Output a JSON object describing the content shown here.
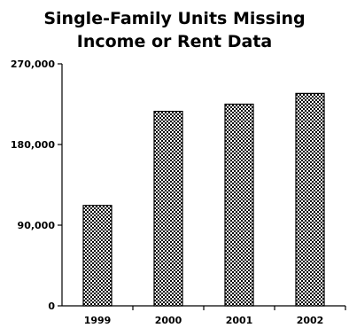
{
  "chart_data": {
    "type": "bar",
    "title_lines": [
      "Single-Family Units Missing",
      "Income or Rent Data"
    ],
    "categories": [
      "1999",
      "2000",
      "2001",
      "2002"
    ],
    "values": [
      112000,
      217000,
      225000,
      237000
    ],
    "ylim": [
      0,
      270000
    ],
    "yticks": [
      0,
      90000,
      180000,
      270000
    ],
    "ytick_labels": [
      "0",
      "90,000",
      "180,000",
      "270,000"
    ],
    "xlabel": "",
    "ylabel": "",
    "grid": false,
    "legend": "none",
    "bar_pattern": "black-and-white crosshatch"
  }
}
